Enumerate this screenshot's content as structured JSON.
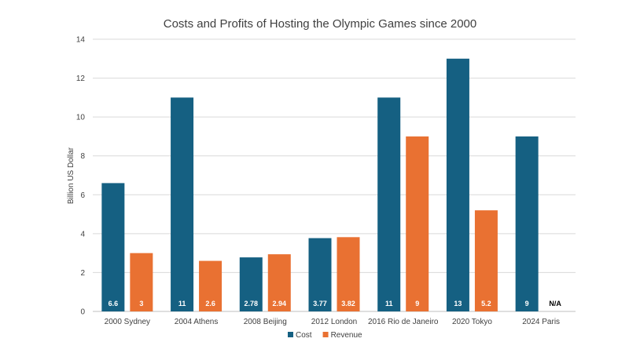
{
  "chart_data": {
    "type": "bar",
    "title": "Costs and Profits of Hosting the Olympic Games since 2000",
    "xlabel": "",
    "ylabel": "Billion US Dollar",
    "ylim": [
      0,
      14
    ],
    "yticks": [
      0,
      2,
      4,
      6,
      8,
      10,
      12,
      14
    ],
    "grid": true,
    "legend_position": "bottom",
    "categories": [
      "2000 Sydney",
      "2004 Athens",
      "2008 Beijing",
      "2012 London",
      "2016 Rio de Janeiro",
      "2020 Tokyo",
      "2024 Paris"
    ],
    "series": [
      {
        "name": "Cost",
        "color": "#156082",
        "values": [
          6.6,
          11,
          2.78,
          3.77,
          11,
          13,
          9
        ],
        "labels": [
          "6.6",
          "11",
          "2.78",
          "3.77",
          "11",
          "13",
          "9"
        ]
      },
      {
        "name": "Revenue",
        "color": "#E97132",
        "values": [
          3,
          2.6,
          2.94,
          3.82,
          9,
          5.2,
          null
        ],
        "labels": [
          "3",
          "2.6",
          "2.94",
          "3.82",
          "9",
          "5.2",
          "N/A"
        ]
      }
    ]
  }
}
